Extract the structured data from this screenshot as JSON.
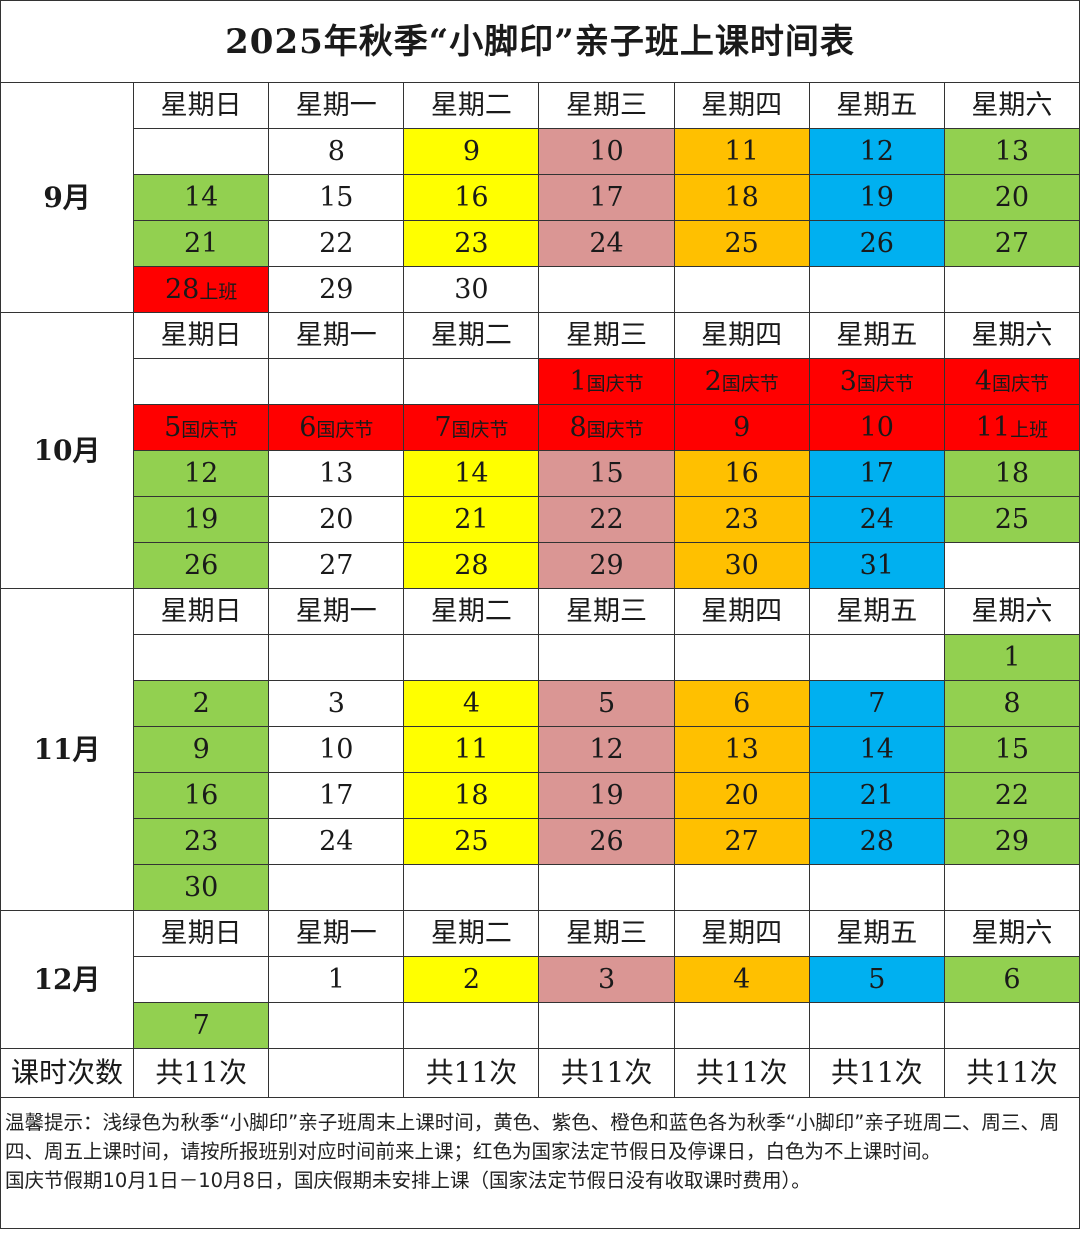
{
  "title": "2025年秋季“小脚印”亲子班上课时间表",
  "weekdays": [
    "星期日",
    "星期一",
    "星期二",
    "星期三",
    "星期四",
    "星期五",
    "星期六"
  ],
  "colors": {
    "white": "#FFFFFF",
    "green": "#92D050",
    "yellow": "#FFFF00",
    "pink": "#DA9694",
    "orange": "#FFC000",
    "blue": "#00B0F0",
    "red": "#FF0000"
  },
  "months": [
    {
      "label": "9月",
      "rows": [
        [
          {
            "d": "",
            "c": "white"
          },
          {
            "d": "8",
            "c": "white"
          },
          {
            "d": "9",
            "c": "yellow"
          },
          {
            "d": "10",
            "c": "pink"
          },
          {
            "d": "11",
            "c": "orange"
          },
          {
            "d": "12",
            "c": "blue"
          },
          {
            "d": "13",
            "c": "green"
          }
        ],
        [
          {
            "d": "14",
            "c": "green"
          },
          {
            "d": "15",
            "c": "white"
          },
          {
            "d": "16",
            "c": "yellow"
          },
          {
            "d": "17",
            "c": "pink"
          },
          {
            "d": "18",
            "c": "orange"
          },
          {
            "d": "19",
            "c": "blue"
          },
          {
            "d": "20",
            "c": "green"
          }
        ],
        [
          {
            "d": "21",
            "c": "green"
          },
          {
            "d": "22",
            "c": "white"
          },
          {
            "d": "23",
            "c": "yellow"
          },
          {
            "d": "24",
            "c": "pink"
          },
          {
            "d": "25",
            "c": "orange"
          },
          {
            "d": "26",
            "c": "blue"
          },
          {
            "d": "27",
            "c": "green"
          }
        ],
        [
          {
            "d": "28",
            "n": "上班",
            "c": "red"
          },
          {
            "d": "29",
            "c": "white"
          },
          {
            "d": "30",
            "c": "white"
          },
          {
            "d": "",
            "c": "white"
          },
          {
            "d": "",
            "c": "white"
          },
          {
            "d": "",
            "c": "white"
          },
          {
            "d": "",
            "c": "white"
          }
        ]
      ]
    },
    {
      "label": "10月",
      "rows": [
        [
          {
            "d": "",
            "c": "white"
          },
          {
            "d": "",
            "c": "white"
          },
          {
            "d": "",
            "c": "white"
          },
          {
            "d": "1",
            "n": "国庆节",
            "c": "red"
          },
          {
            "d": "2",
            "n": "国庆节",
            "c": "red"
          },
          {
            "d": "3",
            "n": "国庆节",
            "c": "red"
          },
          {
            "d": "4",
            "n": "国庆节",
            "c": "red"
          }
        ],
        [
          {
            "d": "5",
            "n": "国庆节",
            "c": "red"
          },
          {
            "d": "6",
            "n": "国庆节",
            "c": "red"
          },
          {
            "d": "7",
            "n": "国庆节",
            "c": "red"
          },
          {
            "d": "8",
            "n": "国庆节",
            "c": "red"
          },
          {
            "d": "9",
            "c": "red"
          },
          {
            "d": "10",
            "c": "red"
          },
          {
            "d": "11",
            "n": "上班",
            "c": "red"
          }
        ],
        [
          {
            "d": "12",
            "c": "green"
          },
          {
            "d": "13",
            "c": "white"
          },
          {
            "d": "14",
            "c": "yellow"
          },
          {
            "d": "15",
            "c": "pink"
          },
          {
            "d": "16",
            "c": "orange"
          },
          {
            "d": "17",
            "c": "blue"
          },
          {
            "d": "18",
            "c": "green"
          }
        ],
        [
          {
            "d": "19",
            "c": "green"
          },
          {
            "d": "20",
            "c": "white"
          },
          {
            "d": "21",
            "c": "yellow"
          },
          {
            "d": "22",
            "c": "pink"
          },
          {
            "d": "23",
            "c": "orange"
          },
          {
            "d": "24",
            "c": "blue"
          },
          {
            "d": "25",
            "c": "green"
          }
        ],
        [
          {
            "d": "26",
            "c": "green"
          },
          {
            "d": "27",
            "c": "white"
          },
          {
            "d": "28",
            "c": "yellow"
          },
          {
            "d": "29",
            "c": "pink"
          },
          {
            "d": "30",
            "c": "orange"
          },
          {
            "d": "31",
            "c": "blue"
          },
          {
            "d": "",
            "c": "white"
          }
        ]
      ]
    },
    {
      "label": "11月",
      "rows": [
        [
          {
            "d": "",
            "c": "white"
          },
          {
            "d": "",
            "c": "white"
          },
          {
            "d": "",
            "c": "white"
          },
          {
            "d": "",
            "c": "white"
          },
          {
            "d": "",
            "c": "white"
          },
          {
            "d": "",
            "c": "white"
          },
          {
            "d": "1",
            "c": "green"
          }
        ],
        [
          {
            "d": "2",
            "c": "green"
          },
          {
            "d": "3",
            "c": "white"
          },
          {
            "d": "4",
            "c": "yellow"
          },
          {
            "d": "5",
            "c": "pink"
          },
          {
            "d": "6",
            "c": "orange"
          },
          {
            "d": "7",
            "c": "blue"
          },
          {
            "d": "8",
            "c": "green"
          }
        ],
        [
          {
            "d": "9",
            "c": "green"
          },
          {
            "d": "10",
            "c": "white"
          },
          {
            "d": "11",
            "c": "yellow"
          },
          {
            "d": "12",
            "c": "pink"
          },
          {
            "d": "13",
            "c": "orange"
          },
          {
            "d": "14",
            "c": "blue"
          },
          {
            "d": "15",
            "c": "green"
          }
        ],
        [
          {
            "d": "16",
            "c": "green"
          },
          {
            "d": "17",
            "c": "white"
          },
          {
            "d": "18",
            "c": "yellow"
          },
          {
            "d": "19",
            "c": "pink"
          },
          {
            "d": "20",
            "c": "orange"
          },
          {
            "d": "21",
            "c": "blue"
          },
          {
            "d": "22",
            "c": "green"
          }
        ],
        [
          {
            "d": "23",
            "c": "green"
          },
          {
            "d": "24",
            "c": "white"
          },
          {
            "d": "25",
            "c": "yellow"
          },
          {
            "d": "26",
            "c": "pink"
          },
          {
            "d": "27",
            "c": "orange"
          },
          {
            "d": "28",
            "c": "blue"
          },
          {
            "d": "29",
            "c": "green"
          }
        ],
        [
          {
            "d": "30",
            "c": "green"
          },
          {
            "d": "",
            "c": "white"
          },
          {
            "d": "",
            "c": "white"
          },
          {
            "d": "",
            "c": "white"
          },
          {
            "d": "",
            "c": "white"
          },
          {
            "d": "",
            "c": "white"
          },
          {
            "d": "",
            "c": "white"
          }
        ]
      ]
    },
    {
      "label": "12月",
      "rows": [
        [
          {
            "d": "",
            "c": "white"
          },
          {
            "d": "1",
            "c": "white"
          },
          {
            "d": "2",
            "c": "yellow"
          },
          {
            "d": "3",
            "c": "pink"
          },
          {
            "d": "4",
            "c": "orange"
          },
          {
            "d": "5",
            "c": "blue"
          },
          {
            "d": "6",
            "c": "green"
          }
        ],
        [
          {
            "d": "7",
            "c": "green"
          },
          {
            "d": "",
            "c": "white"
          },
          {
            "d": "",
            "c": "white"
          },
          {
            "d": "",
            "c": "white"
          },
          {
            "d": "",
            "c": "white"
          },
          {
            "d": "",
            "c": "white"
          },
          {
            "d": "",
            "c": "white"
          }
        ]
      ]
    }
  ],
  "count_row": {
    "label": "课时次数",
    "values": [
      "共11次",
      "",
      "共11次",
      "共11次",
      "共11次",
      "共11次",
      "共11次"
    ]
  },
  "notes": [
    "温馨提示：浅绿色为秋季“小脚印”亲子班周末上课时间，黄色、紫色、橙色和蓝色各为秋季“小脚印”亲子班周二、周三、周四、周五上课时间，请按所报班别对应时间前来上课；红色为国家法定节假日及停课日，白色为不上课时间。",
    "国庆节假期10月1日－10月8日，国庆假期未安排上课（国家法定节假日没有收取课时费用）。"
  ]
}
